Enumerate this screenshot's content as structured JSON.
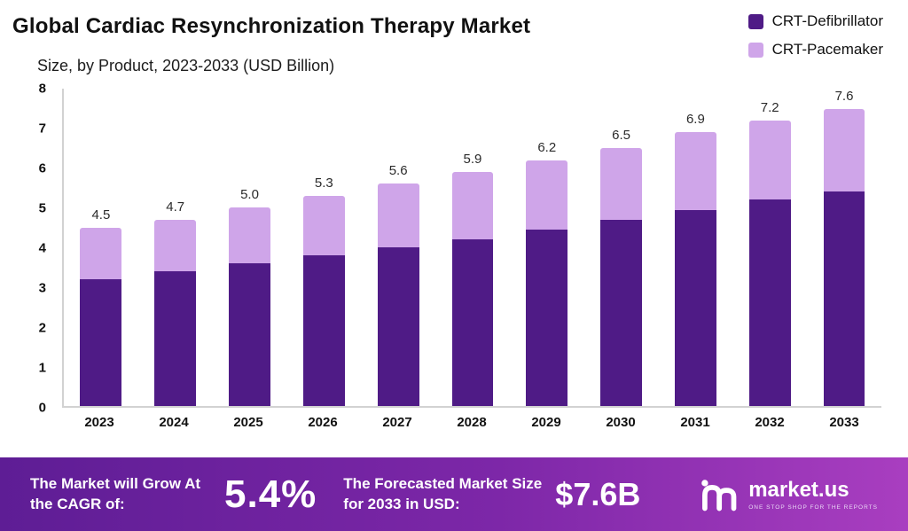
{
  "title": "Global Cardiac Resynchronization Therapy Market",
  "subtitle": "Size, by Product, 2023-2033 (USD Billion)",
  "legend": [
    {
      "label": "CRT-Defibrillator",
      "color": "#4f1b86"
    },
    {
      "label": "CRT-Pacemaker",
      "color": "#cfa5e9"
    }
  ],
  "colors": {
    "defibrillator": "#4f1b86",
    "pacemaker": "#cfa5e9",
    "axis": "#d2d2d2"
  },
  "chart_data": {
    "type": "bar",
    "stacked": true,
    "title": "Global Cardiac Resynchronization Therapy Market Size, by Product, 2023-2033 (USD Billion)",
    "categories": [
      "2023",
      "2024",
      "2025",
      "2026",
      "2027",
      "2028",
      "2029",
      "2030",
      "2031",
      "2032",
      "2033"
    ],
    "series": [
      {
        "name": "CRT-Defibrillator",
        "values": [
          3.2,
          3.4,
          3.6,
          3.8,
          4.0,
          4.2,
          4.45,
          4.7,
          4.95,
          5.2,
          5.5
        ]
      },
      {
        "name": "CRT-Pacemaker",
        "values": [
          1.3,
          1.3,
          1.4,
          1.5,
          1.6,
          1.7,
          1.75,
          1.8,
          1.95,
          2.0,
          2.1
        ]
      }
    ],
    "totals": [
      "4.5",
      "4.7",
      "5.0",
      "5.3",
      "5.6",
      "5.9",
      "6.2",
      "6.5",
      "6.9",
      "7.2",
      "7.6"
    ],
    "xlabel": "",
    "ylabel": "",
    "ylim": [
      0,
      8
    ],
    "yticks": [
      0,
      1,
      2,
      3,
      4,
      5,
      6,
      7,
      8
    ],
    "grid": false,
    "legend_position": "top-right"
  },
  "banner": {
    "cagr_label": "The Market will Grow At the CAGR of:",
    "cagr_value": "5.4%",
    "forecast_label": "The Forecasted Market Size for 2033 in USD:",
    "forecast_value": "$7.6B",
    "brand": "market.us",
    "brand_tagline": "ONE STOP SHOP FOR THE REPORTS"
  }
}
